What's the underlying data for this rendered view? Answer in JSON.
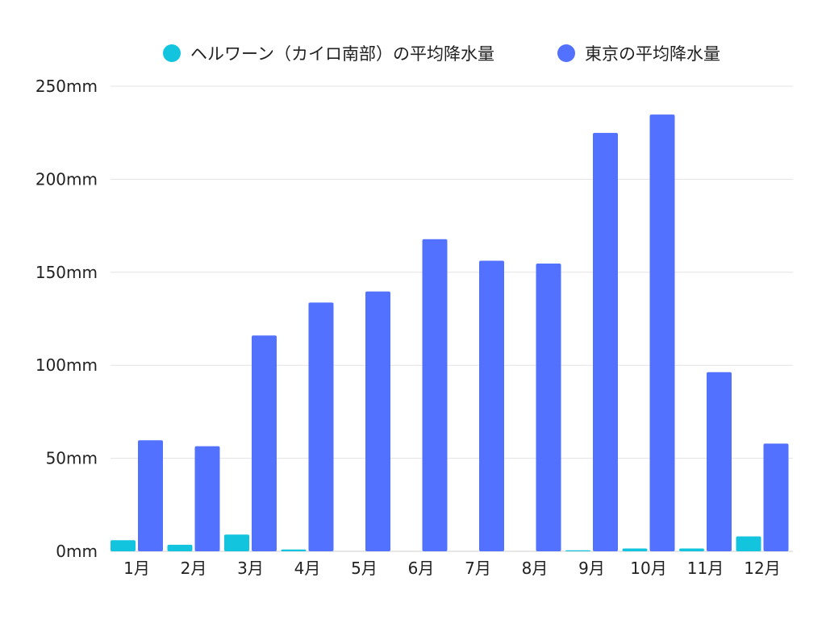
{
  "chart_data": {
    "type": "bar",
    "categories": [
      "1月",
      "2月",
      "3月",
      "4月",
      "5月",
      "6月",
      "7月",
      "8月",
      "9月",
      "10月",
      "11月",
      "12月"
    ],
    "series": [
      {
        "name": "ヘルワーン（カイロ南部）の平均降水量",
        "color": "#13c4de",
        "values": [
          6,
          3.5,
          9,
          1,
          0,
          0,
          0,
          0,
          0.5,
          1.5,
          1.5,
          8
        ]
      },
      {
        "name": "東京の平均降水量",
        "color": "#5271ff",
        "values": [
          59.7,
          56.5,
          116,
          133.7,
          139.7,
          167.8,
          156.2,
          154.7,
          224.9,
          234.8,
          96.3,
          57.9
        ]
      }
    ],
    "ylim": [
      0,
      250
    ],
    "yticks": [
      0,
      50,
      100,
      150,
      200,
      250
    ],
    "ytick_labels": [
      "0mm",
      "50mm",
      "100mm",
      "150mm",
      "200mm",
      "250mm"
    ],
    "grid": true,
    "legend_position": "top"
  }
}
